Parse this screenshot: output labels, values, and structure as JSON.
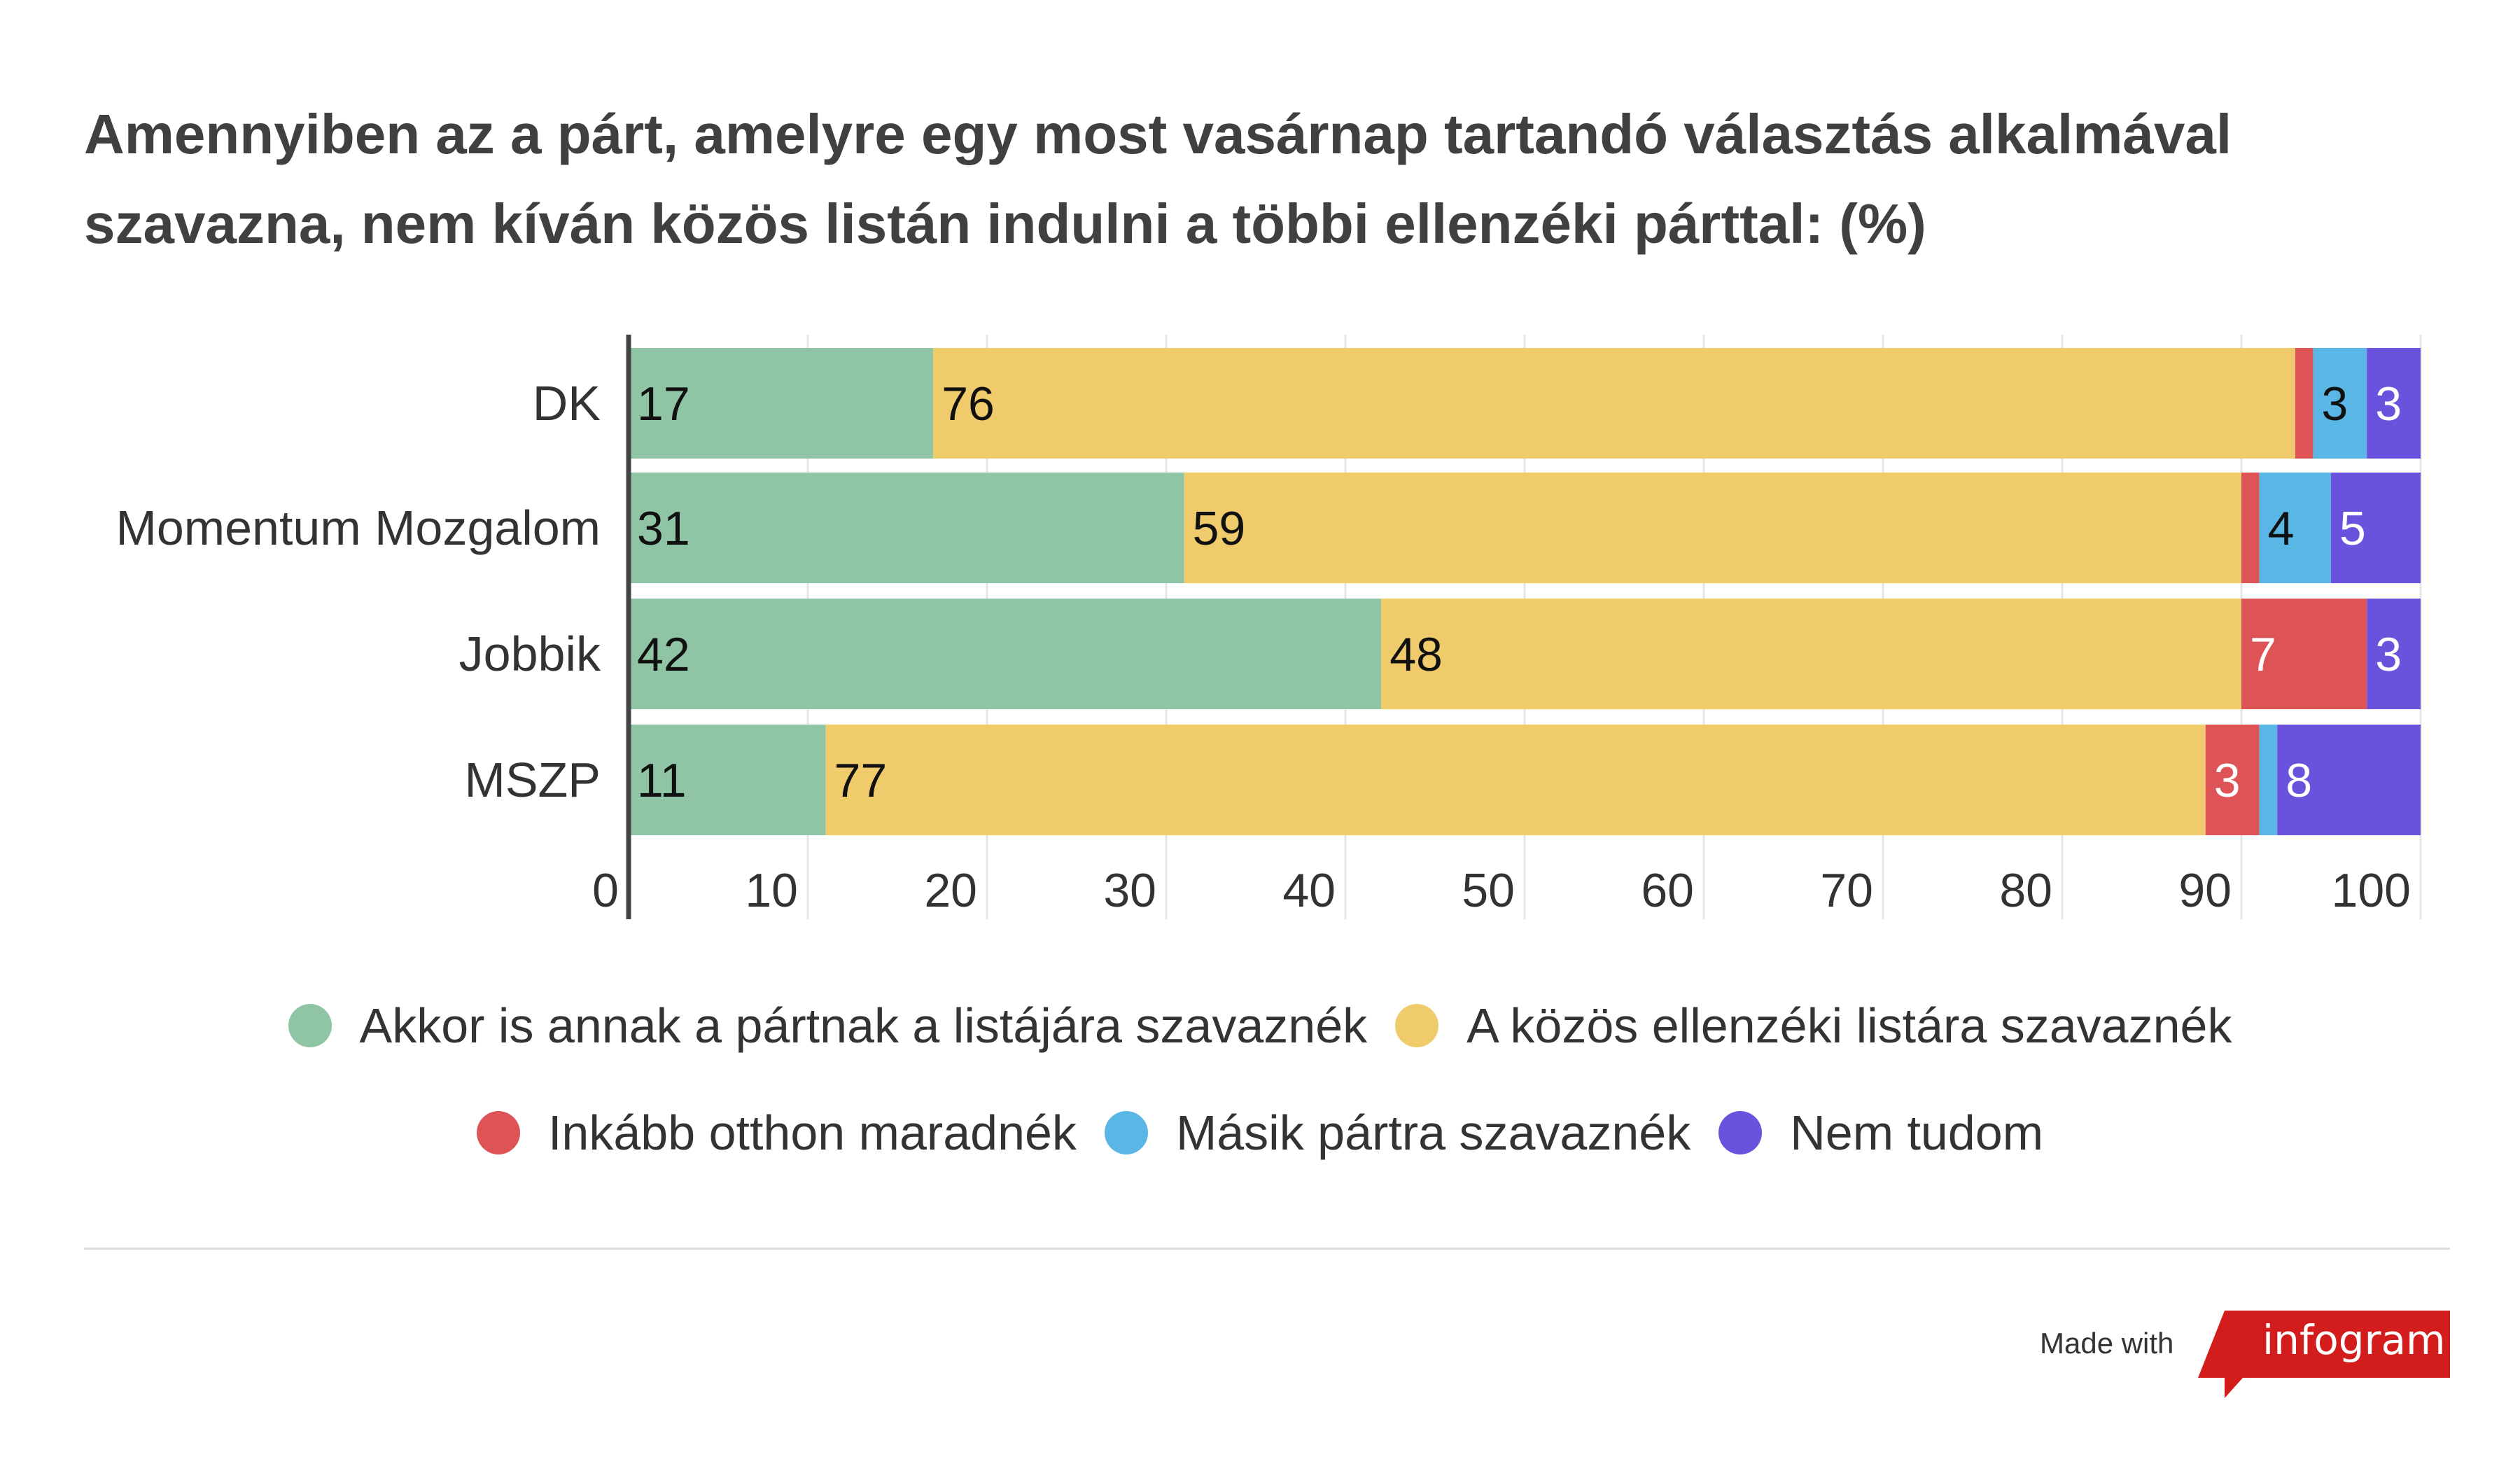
{
  "title": "Amennyiben az a párt, amelyre egy most vasárnap tartandó választás alkalmával szavazna, nem kíván közös listán indulni a többi ellenzéki párttal: (%)",
  "chart_data": {
    "type": "bar",
    "orientation": "horizontal",
    "stacked": true,
    "categories": [
      "DK",
      "Momentum Mozgalom",
      "Jobbik",
      "MSZP"
    ],
    "series": [
      {
        "name": "Akkor is annak a pártnak a listájára szavaznék",
        "color": "#8fc4a5",
        "values": [
          17,
          31,
          42,
          11
        ],
        "labels": [
          "17",
          "31",
          "42",
          "11"
        ]
      },
      {
        "name": "A közös ellenzéki listára szavaznék",
        "color": "#efcb6b",
        "values": [
          76,
          59,
          48,
          77
        ],
        "labels": [
          "76",
          "59",
          "48",
          "77"
        ]
      },
      {
        "name": "Inkább otthon maradnék",
        "color": "#dd5356",
        "values": [
          1,
          1,
          7,
          3
        ],
        "labels": [
          "",
          "",
          "7",
          "3"
        ]
      },
      {
        "name": "Másik pártra szavaznék",
        "color": "#5ab6e4",
        "values": [
          3,
          4,
          0,
          1
        ],
        "labels": [
          "3",
          "4",
          "",
          ""
        ]
      },
      {
        "name": "Nem tudom",
        "color": "#6b52dc",
        "values": [
          3,
          5,
          3,
          8
        ],
        "labels": [
          "3",
          "5",
          "3",
          "8"
        ]
      }
    ],
    "xticks": [
      "0",
      "10",
      "20",
      "30",
      "40",
      "50",
      "60",
      "70",
      "80",
      "90",
      "100"
    ],
    "xlim": [
      0,
      100
    ],
    "grid": true,
    "legend_position": "bottom"
  },
  "footer": {
    "made_with": "Made with",
    "brand": "infogram"
  }
}
